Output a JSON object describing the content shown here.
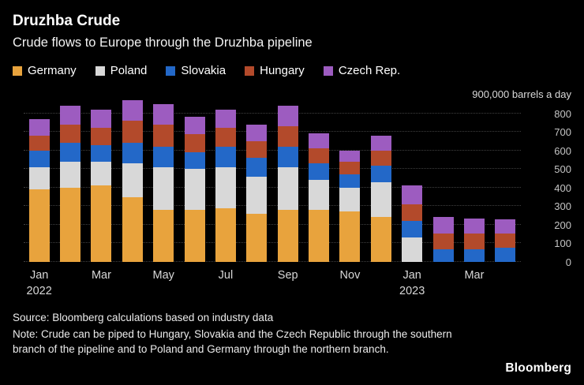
{
  "header": {
    "title": "Druzhba Crude",
    "subtitle": "Crude flows to Europe through the Druzhba pipeline"
  },
  "chart_data": {
    "type": "bar",
    "stacked": true,
    "title": "Druzhba Crude",
    "subtitle": "Crude flows to Europe through the Druzhba pipeline",
    "categories": [
      "Jan 2022",
      "Feb 2022",
      "Mar 2022",
      "Apr 2022",
      "May 2022",
      "Jun 2022",
      "Jul 2022",
      "Aug 2022",
      "Sep 2022",
      "Oct 2022",
      "Nov 2022",
      "Dec 2022",
      "Jan 2023",
      "Feb 2023",
      "Mar 2023",
      "Apr 2023"
    ],
    "series": [
      {
        "name": "Germany",
        "color": "#E8A33D",
        "values": [
          390,
          400,
          410,
          350,
          280,
          280,
          290,
          260,
          280,
          280,
          270,
          240,
          0,
          0,
          0,
          0
        ]
      },
      {
        "name": "Poland",
        "color": "#D8D8D8",
        "values": [
          120,
          140,
          130,
          180,
          230,
          220,
          220,
          200,
          230,
          160,
          130,
          190,
          130,
          0,
          0,
          0
        ]
      },
      {
        "name": "Slovakia",
        "color": "#2368C8",
        "values": [
          90,
          100,
          90,
          110,
          110,
          90,
          110,
          100,
          110,
          90,
          70,
          90,
          90,
          70,
          70,
          75
        ]
      },
      {
        "name": "Hungary",
        "color": "#B34A2B",
        "values": [
          80,
          100,
          90,
          120,
          120,
          100,
          100,
          90,
          110,
          80,
          70,
          80,
          90,
          85,
          85,
          80
        ]
      },
      {
        "name": "Czech Rep.",
        "color": "#9D5CC0",
        "values": [
          90,
          100,
          100,
          110,
          110,
          90,
          100,
          90,
          110,
          80,
          60,
          80,
          100,
          85,
          80,
          75
        ]
      }
    ],
    "ylim": [
      0,
      900
    ],
    "yticks": [
      0,
      100,
      200,
      300,
      400,
      500,
      600,
      700,
      800
    ],
    "y_annotation": "900,000 barrels a day",
    "xticks": [
      {
        "index": 0,
        "month": "Jan",
        "year": "2022"
      },
      {
        "index": 2,
        "month": "Mar"
      },
      {
        "index": 4,
        "month": "May"
      },
      {
        "index": 6,
        "month": "Jul"
      },
      {
        "index": 8,
        "month": "Sep"
      },
      {
        "index": 10,
        "month": "Nov"
      },
      {
        "index": 12,
        "month": "Jan",
        "year": "2023"
      },
      {
        "index": 14,
        "month": "Mar"
      }
    ],
    "grid": "dotted-horizontal",
    "legend_position": "top"
  },
  "footer": {
    "source": "Source: Bloomberg calculations based on industry data",
    "note": "Note: Crude can be piped to Hungary, Slovakia and the Czech Republic through the southern branch of the pipeline and to Poland and Germany through the northern branch.",
    "logo": "Bloomberg"
  }
}
